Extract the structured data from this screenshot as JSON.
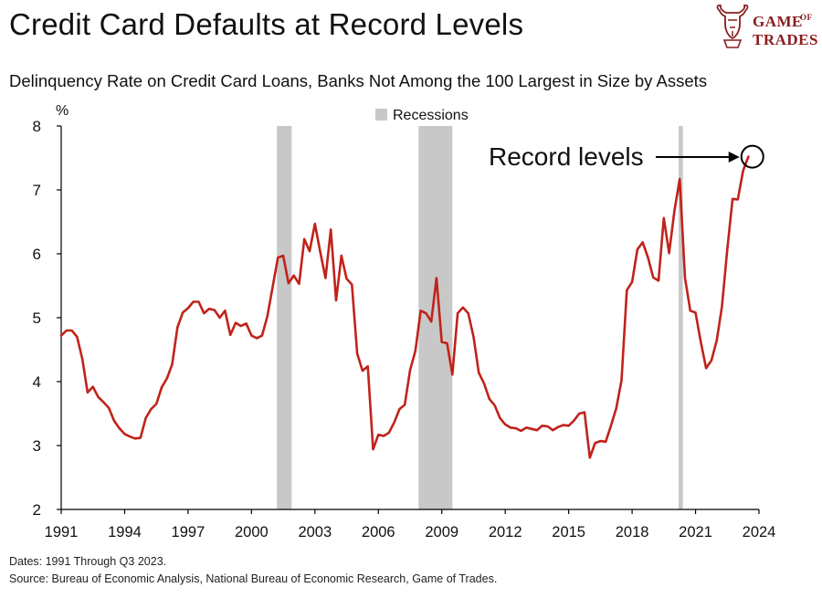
{
  "header": {
    "title": "Credit Card Defaults at Record Levels",
    "subtitle": "Delinquency Rate on Credit Card Loans, Banks Not Among the 100 Largest in Size by Assets"
  },
  "logo": {
    "word1": "GAME",
    "word2": "OF",
    "word3": "TRADES",
    "icon": "bull-head-icon",
    "color": "#8a1c1c"
  },
  "footer": {
    "dates": "Dates: 1991 Through Q3 2023.",
    "source": "Source: Bureau of Economic Analysis, National Bureau of Economic Research, Game of Trades."
  },
  "colors": {
    "line": "#c0231b",
    "recession": "#c8c8c8",
    "annotation": "#000000"
  },
  "chart_data": {
    "type": "line",
    "title": "Credit Card Defaults at Record Levels",
    "subtitle": "Delinquency Rate on Credit Card Loans, Banks Not Among the 100 Largest in Size by Assets",
    "ylabel": "%",
    "xlabel": "",
    "ylim": [
      2,
      8
    ],
    "xlim": [
      1991,
      2024
    ],
    "yticks": [
      2,
      3,
      4,
      5,
      6,
      7,
      8
    ],
    "xticks": [
      1991,
      1994,
      1997,
      2000,
      2003,
      2006,
      2009,
      2012,
      2015,
      2018,
      2021,
      2024
    ],
    "grid": false,
    "legend": {
      "label": "Recessions",
      "placement": "top-center"
    },
    "recessions": [
      [
        2001.2,
        2001.9
      ],
      [
        2007.9,
        2009.5
      ],
      [
        2020.2,
        2020.4
      ]
    ],
    "annotation": {
      "text": "Record levels",
      "target": [
        2023.6,
        7.52
      ]
    },
    "series": [
      {
        "x": [
          1991.0,
          1991.25,
          1991.5,
          1991.75,
          1992.0,
          1992.25,
          1992.5,
          1992.75,
          1993.0,
          1993.25,
          1993.5,
          1993.75,
          1994.0,
          1994.25,
          1994.5,
          1994.75,
          1995.0,
          1995.25,
          1995.5,
          1995.75,
          1996.0,
          1996.25,
          1996.5,
          1996.75,
          1997.0,
          1997.25,
          1997.5,
          1997.75,
          1998.0,
          1998.25,
          1998.5,
          1998.75,
          1999.0,
          1999.25,
          1999.5,
          1999.75,
          2000.0,
          2000.25,
          2000.5,
          2000.75,
          2001.0,
          2001.25,
          2001.5,
          2001.75,
          2002.0,
          2002.25,
          2002.5,
          2002.75,
          2003.0,
          2003.25,
          2003.5,
          2003.75,
          2004.0,
          2004.25,
          2004.5,
          2004.75,
          2005.0,
          2005.25,
          2005.5,
          2005.75,
          2006.0,
          2006.25,
          2006.5,
          2006.75,
          2007.0,
          2007.25,
          2007.5,
          2007.75,
          2008.0,
          2008.25,
          2008.5,
          2008.75,
          2009.0,
          2009.25,
          2009.5,
          2009.75,
          2010.0,
          2010.25,
          2010.5,
          2010.75,
          2011.0,
          2011.25,
          2011.5,
          2011.75,
          2012.0,
          2012.25,
          2012.5,
          2012.75,
          2013.0,
          2013.25,
          2013.5,
          2013.75,
          2014.0,
          2014.25,
          2014.5,
          2014.75,
          2015.0,
          2015.25,
          2015.5,
          2015.75,
          2016.0,
          2016.25,
          2016.5,
          2016.75,
          2017.0,
          2017.25,
          2017.5,
          2017.75,
          2018.0,
          2018.25,
          2018.5,
          2018.75,
          2019.0,
          2019.25,
          2019.5,
          2019.75,
          2020.0,
          2020.25,
          2020.5,
          2020.75,
          2021.0,
          2021.25,
          2021.5,
          2021.75,
          2022.0,
          2022.25,
          2022.5,
          2022.75,
          2023.0,
          2023.25,
          2023.5
        ],
        "values": [
          4.72,
          4.8,
          4.8,
          4.7,
          4.35,
          3.83,
          3.92,
          3.76,
          3.68,
          3.59,
          3.39,
          3.27,
          3.18,
          3.14,
          3.11,
          3.12,
          3.43,
          3.57,
          3.65,
          3.91,
          4.05,
          4.27,
          4.85,
          5.08,
          5.15,
          5.25,
          5.25,
          5.07,
          5.14,
          5.12,
          5.0,
          5.11,
          4.73,
          4.92,
          4.87,
          4.91,
          4.72,
          4.68,
          4.72,
          5.02,
          5.48,
          5.94,
          5.97,
          5.54,
          5.66,
          5.53,
          6.23,
          6.04,
          6.47,
          6.03,
          5.62,
          6.38,
          5.27,
          5.97,
          5.61,
          5.52,
          4.44,
          4.17,
          4.24,
          2.94,
          3.17,
          3.15,
          3.2,
          3.36,
          3.57,
          3.64,
          4.18,
          4.48,
          5.11,
          5.07,
          4.94,
          5.62,
          4.62,
          4.6,
          4.11,
          5.07,
          5.16,
          5.07,
          4.7,
          4.14,
          3.97,
          3.73,
          3.63,
          3.43,
          3.33,
          3.28,
          3.27,
          3.23,
          3.28,
          3.26,
          3.24,
          3.31,
          3.3,
          3.24,
          3.29,
          3.32,
          3.31,
          3.39,
          3.5,
          3.52,
          2.81,
          3.04,
          3.07,
          3.06,
          3.31,
          3.58,
          4.02,
          5.43,
          5.56,
          6.07,
          6.18,
          5.94,
          5.63,
          5.58,
          6.56,
          6.01,
          6.67,
          7.17,
          5.62,
          5.11,
          5.08,
          4.62,
          4.21,
          4.33,
          4.64,
          5.18,
          6.07,
          6.86,
          6.85,
          7.3,
          7.52
        ]
      }
    ]
  }
}
